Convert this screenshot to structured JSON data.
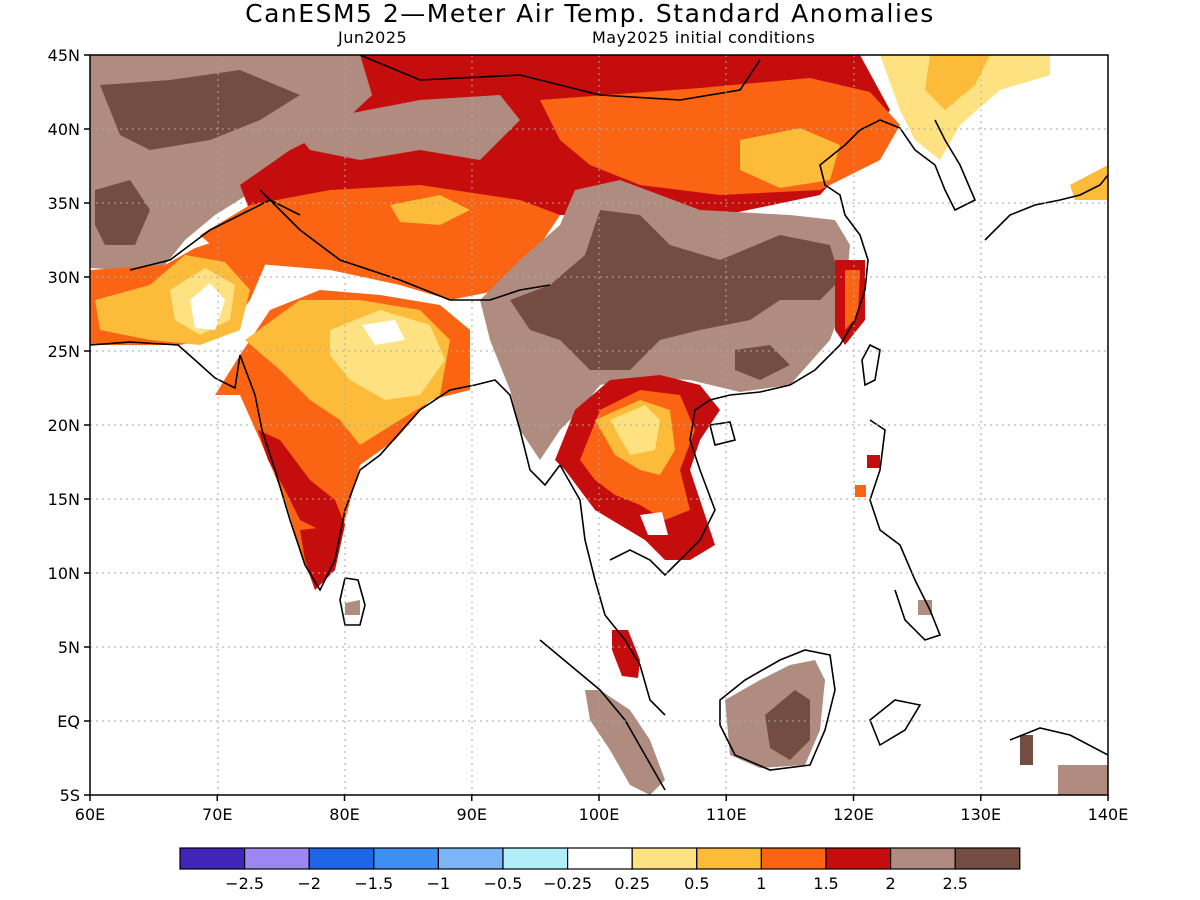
{
  "header": {
    "title": "CanESM5 2—Meter Air Temp. Standard Anomalies",
    "valid_month": "Jun2025",
    "init_conditions": "May2025 initial conditions"
  },
  "axes": {
    "lat_labels": [
      "45N",
      "40N",
      "35N",
      "30N",
      "25N",
      "20N",
      "15N",
      "10N",
      "5N",
      "EQ",
      "5S"
    ],
    "lon_labels": [
      "60E",
      "70E",
      "80E",
      "90E",
      "100E",
      "110E",
      "120E",
      "130E",
      "140E"
    ]
  },
  "colorbar": {
    "colors": [
      "#3f25b8",
      "#9c86f4",
      "#1e66e6",
      "#3c90f2",
      "#7ab6f7",
      "#b2eef9",
      "#ffffff",
      "#fee180",
      "#fdbb3a",
      "#fa6412",
      "#c60d0d",
      "#af8b80",
      "#744d42"
    ],
    "labels": [
      "−2.5",
      "−2",
      "−1.5",
      "−1",
      "−0.5",
      "−0.25",
      "0.25",
      "0.5",
      "1",
      "1.5",
      "2",
      "2.5"
    ]
  }
}
